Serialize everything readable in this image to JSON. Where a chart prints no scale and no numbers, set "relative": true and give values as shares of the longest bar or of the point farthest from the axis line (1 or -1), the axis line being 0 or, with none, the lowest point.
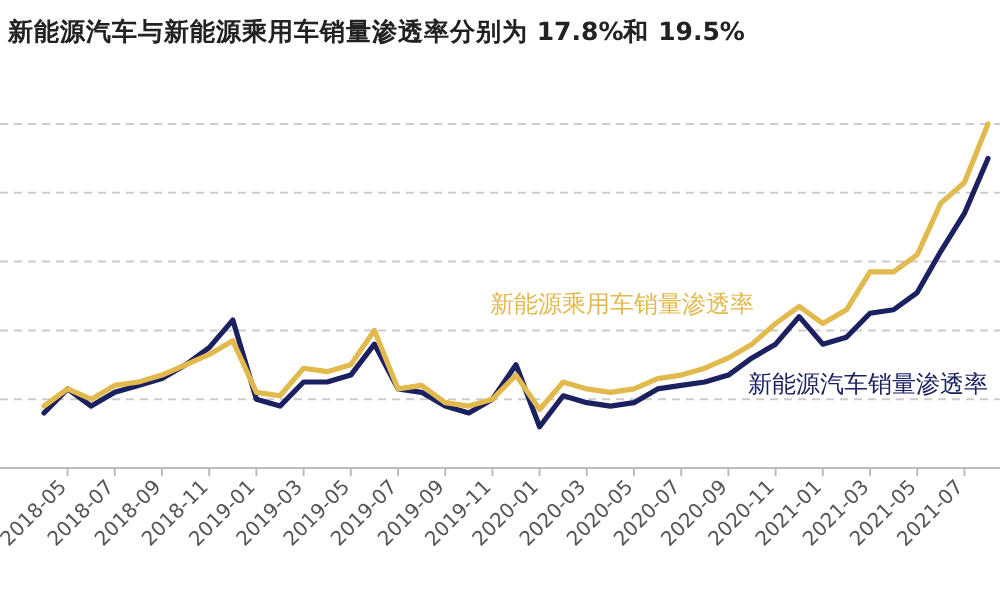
{
  "chart_data": {
    "type": "line",
    "title": "新能源汽车与新能源乘用车销量渗透率分别为 17.8%和 19.5%",
    "relative": true,
    "grid": "y",
    "categories": [
      null,
      "2018-05",
      null,
      "2018-07",
      null,
      "2018-09",
      null,
      "2018-11",
      null,
      "2019-01",
      null,
      "2019-03",
      null,
      "2019-05",
      null,
      "2019-07",
      null,
      "2019-09",
      null,
      "2019-11",
      null,
      "2020-01",
      null,
      "2020-03",
      null,
      "2020-05",
      null,
      "2020-07",
      null,
      "2020-09",
      null,
      "2020-11",
      null,
      "2021-01",
      null,
      "2021-03",
      null,
      "2021-05",
      null,
      "2021-07",
      null
    ],
    "series": [
      {
        "name": "新能源汽车销量渗透率",
        "color": "#1b2160",
        "values": [
          0.16,
          0.23,
          0.18,
          0.22,
          0.24,
          0.26,
          0.3,
          0.35,
          0.43,
          0.2,
          0.18,
          0.25,
          0.25,
          0.27,
          0.36,
          0.23,
          0.22,
          0.18,
          0.16,
          0.2,
          0.3,
          0.12,
          0.21,
          0.19,
          0.18,
          0.19,
          0.23,
          0.24,
          0.25,
          0.27,
          0.32,
          0.36,
          0.44,
          0.36,
          0.38,
          0.45,
          0.46,
          0.51,
          0.63,
          0.74,
          0.9
        ]
      },
      {
        "name": "新能源乘用车销量渗透率",
        "color": "#e2b94c",
        "values": [
          0.18,
          0.23,
          0.2,
          0.24,
          0.25,
          0.27,
          0.3,
          0.33,
          0.37,
          0.22,
          0.21,
          0.29,
          0.28,
          0.3,
          0.4,
          0.23,
          0.24,
          0.19,
          0.18,
          0.2,
          0.27,
          0.17,
          0.25,
          0.23,
          0.22,
          0.23,
          0.26,
          0.27,
          0.29,
          0.32,
          0.36,
          0.42,
          0.47,
          0.42,
          0.46,
          0.57,
          0.57,
          0.62,
          0.77,
          0.83,
          1
        ]
      }
    ]
  }
}
